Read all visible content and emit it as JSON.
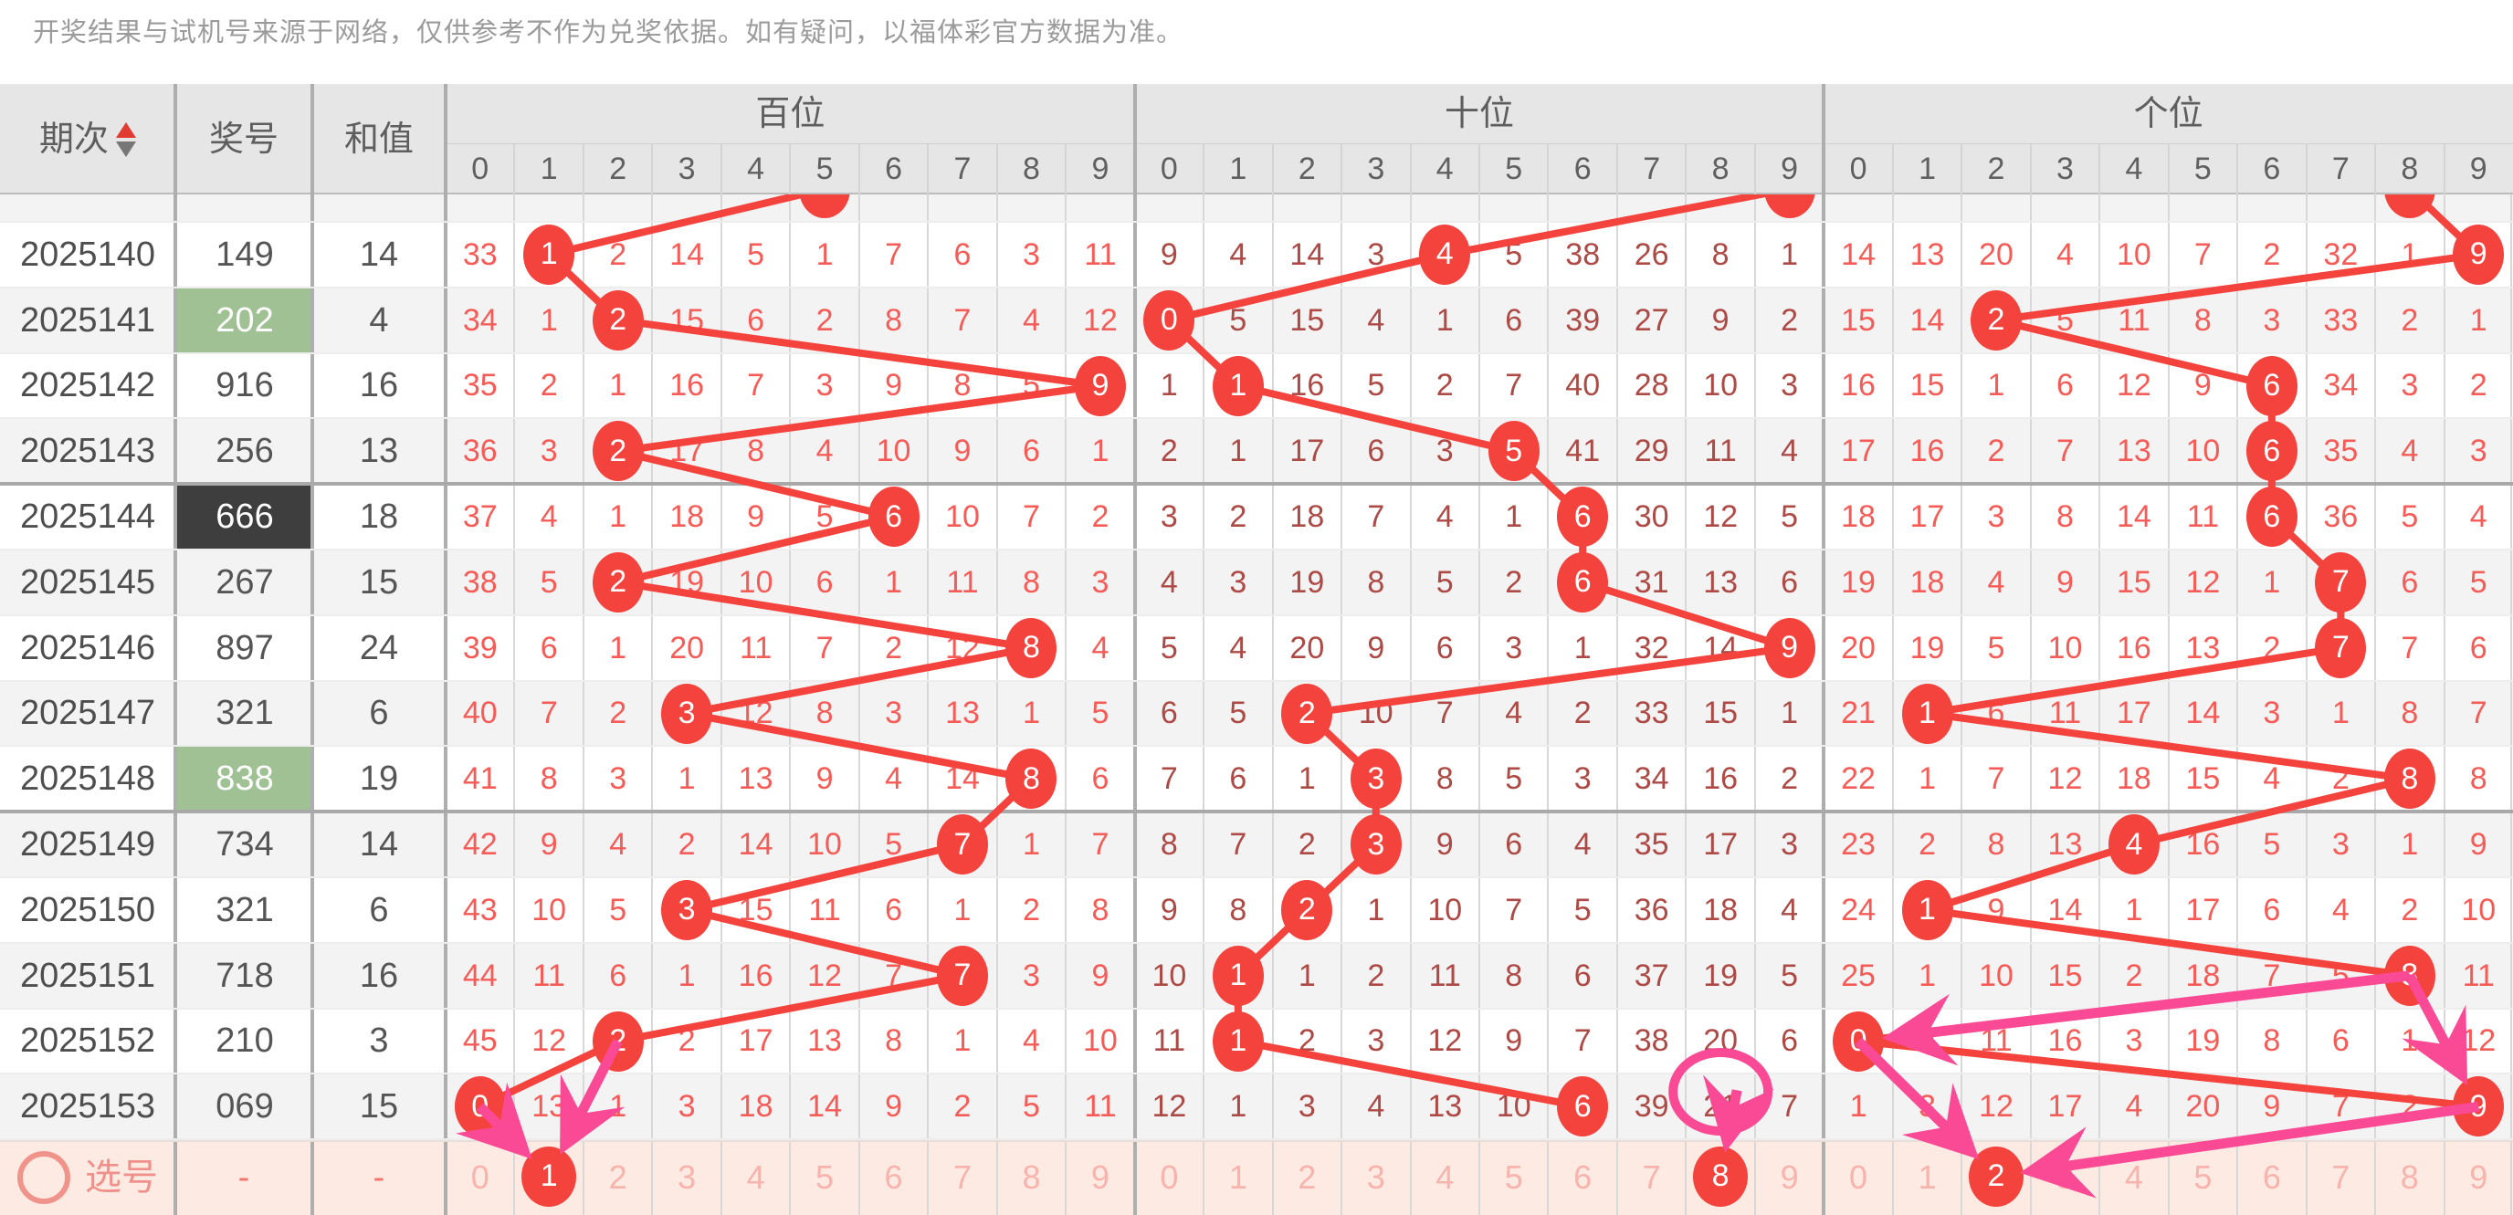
{
  "disclaimer": "开奖结果与试机号来源于网络，仅供参考不作为兑奖依据。如有疑问，以福体彩官方数据为准。",
  "header": {
    "col_period": "期次",
    "col_number": "奖号",
    "col_sum": "和值",
    "sections": [
      {
        "key": "bai",
        "label": "百位"
      },
      {
        "key": "shi",
        "label": "十位"
      },
      {
        "key": "ge",
        "label": "个位"
      }
    ],
    "digits": [
      "0",
      "1",
      "2",
      "3",
      "4",
      "5",
      "6",
      "7",
      "8",
      "9"
    ]
  },
  "colors": {
    "trend_red": "#f4423d",
    "bright_red_text": "#f65c57",
    "dark_red_text": "#ad4a45",
    "pink_annotation": "#fb4a95",
    "green_cell": "#9fc194",
    "dark_cell": "#3e3e3e",
    "select_row_bg": "#fdebe3",
    "select_faded_text": "#f8b3ac",
    "header_bg": "#e6e6e6"
  },
  "prev_row_hits": {
    "bai": 5,
    "shi": 9,
    "ge": 8
  },
  "rows": [
    {
      "period": "2025140",
      "number": "149",
      "sum": "14",
      "number_style": "normal",
      "bai": {
        "values": [
          33,
          1,
          2,
          14,
          5,
          1,
          7,
          6,
          3,
          11
        ],
        "hit": 1
      },
      "shi": {
        "values": [
          9,
          4,
          14,
          3,
          4,
          5,
          38,
          26,
          8,
          1
        ],
        "hit": 4
      },
      "ge": {
        "values": [
          14,
          13,
          20,
          4,
          10,
          7,
          2,
          32,
          1,
          9
        ],
        "hit": 9
      }
    },
    {
      "period": "2025141",
      "number": "202",
      "sum": "4",
      "number_style": "green",
      "bai": {
        "values": [
          34,
          1,
          2,
          15,
          6,
          2,
          8,
          7,
          4,
          12
        ],
        "hit": 2
      },
      "shi": {
        "values": [
          0,
          5,
          15,
          4,
          1,
          6,
          39,
          27,
          9,
          2
        ],
        "hit": 0
      },
      "ge": {
        "values": [
          15,
          14,
          2,
          5,
          11,
          8,
          3,
          33,
          2,
          1
        ],
        "hit": 2
      }
    },
    {
      "period": "2025142",
      "number": "916",
      "sum": "16",
      "number_style": "normal",
      "bai": {
        "values": [
          35,
          2,
          1,
          16,
          7,
          3,
          9,
          8,
          5,
          9
        ],
        "hit": 9
      },
      "shi": {
        "values": [
          1,
          1,
          16,
          5,
          2,
          7,
          40,
          28,
          10,
          3
        ],
        "hit": 1
      },
      "ge": {
        "values": [
          16,
          15,
          1,
          6,
          12,
          9,
          6,
          34,
          3,
          2
        ],
        "hit": 6
      }
    },
    {
      "period": "2025143",
      "number": "256",
      "sum": "13",
      "number_style": "normal",
      "bai": {
        "values": [
          36,
          3,
          2,
          17,
          8,
          4,
          10,
          9,
          6,
          1
        ],
        "hit": 2
      },
      "shi": {
        "values": [
          2,
          1,
          17,
          6,
          3,
          5,
          41,
          29,
          11,
          4
        ],
        "hit": 5
      },
      "ge": {
        "values": [
          17,
          16,
          2,
          7,
          13,
          10,
          6,
          35,
          4,
          3
        ],
        "hit": 6
      }
    },
    {
      "period": "2025144",
      "number": "666",
      "sum": "18",
      "number_style": "dark",
      "bai": {
        "values": [
          37,
          4,
          1,
          18,
          9,
          5,
          6,
          10,
          7,
          2
        ],
        "hit": 6
      },
      "shi": {
        "values": [
          3,
          2,
          18,
          7,
          4,
          1,
          6,
          30,
          12,
          5
        ],
        "hit": 6
      },
      "ge": {
        "values": [
          18,
          17,
          3,
          8,
          14,
          11,
          6,
          36,
          5,
          4
        ],
        "hit": 6
      }
    },
    {
      "period": "2025145",
      "number": "267",
      "sum": "15",
      "number_style": "normal",
      "bai": {
        "values": [
          38,
          5,
          2,
          19,
          10,
          6,
          1,
          11,
          8,
          3
        ],
        "hit": 2
      },
      "shi": {
        "values": [
          4,
          3,
          19,
          8,
          5,
          2,
          6,
          31,
          13,
          6
        ],
        "hit": 6
      },
      "ge": {
        "values": [
          19,
          18,
          4,
          9,
          15,
          12,
          1,
          7,
          6,
          5
        ],
        "hit": 7
      }
    },
    {
      "period": "2025146",
      "number": "897",
      "sum": "24",
      "number_style": "normal",
      "bai": {
        "values": [
          39,
          6,
          1,
          20,
          11,
          7,
          2,
          12,
          8,
          4
        ],
        "hit": 8
      },
      "shi": {
        "values": [
          5,
          4,
          20,
          9,
          6,
          3,
          1,
          32,
          14,
          9
        ],
        "hit": 9
      },
      "ge": {
        "values": [
          20,
          19,
          5,
          10,
          16,
          13,
          2,
          7,
          7,
          6
        ],
        "hit": 7
      }
    },
    {
      "period": "2025147",
      "number": "321",
      "sum": "6",
      "number_style": "normal",
      "bai": {
        "values": [
          40,
          7,
          2,
          3,
          12,
          8,
          3,
          13,
          1,
          5
        ],
        "hit": 3
      },
      "shi": {
        "values": [
          6,
          5,
          2,
          10,
          7,
          4,
          2,
          33,
          15,
          1
        ],
        "hit": 2
      },
      "ge": {
        "values": [
          21,
          1,
          6,
          11,
          17,
          14,
          3,
          1,
          8,
          7
        ],
        "hit": 1
      }
    },
    {
      "period": "2025148",
      "number": "838",
      "sum": "19",
      "number_style": "green",
      "bai": {
        "values": [
          41,
          8,
          3,
          1,
          13,
          9,
          4,
          14,
          8,
          6
        ],
        "hit": 8
      },
      "shi": {
        "values": [
          7,
          6,
          1,
          3,
          8,
          5,
          3,
          34,
          16,
          2
        ],
        "hit": 3
      },
      "ge": {
        "values": [
          22,
          1,
          7,
          12,
          18,
          15,
          4,
          2,
          8,
          8
        ],
        "hit": 8
      }
    },
    {
      "period": "2025149",
      "number": "734",
      "sum": "14",
      "number_style": "normal",
      "bai": {
        "values": [
          42,
          9,
          4,
          2,
          14,
          10,
          5,
          7,
          1,
          7
        ],
        "hit": 7
      },
      "shi": {
        "values": [
          8,
          7,
          2,
          3,
          9,
          6,
          4,
          35,
          17,
          3
        ],
        "hit": 3
      },
      "ge": {
        "values": [
          23,
          2,
          8,
          13,
          4,
          16,
          5,
          3,
          1,
          9
        ],
        "hit": 4
      }
    },
    {
      "period": "2025150",
      "number": "321",
      "sum": "6",
      "number_style": "normal",
      "bai": {
        "values": [
          43,
          10,
          5,
          3,
          15,
          11,
          6,
          1,
          2,
          8
        ],
        "hit": 3
      },
      "shi": {
        "values": [
          9,
          8,
          2,
          1,
          10,
          7,
          5,
          36,
          18,
          4
        ],
        "hit": 2
      },
      "ge": {
        "values": [
          24,
          1,
          9,
          14,
          1,
          17,
          6,
          4,
          2,
          10
        ],
        "hit": 1
      }
    },
    {
      "period": "2025151",
      "number": "718",
      "sum": "16",
      "number_style": "normal",
      "bai": {
        "values": [
          44,
          11,
          6,
          1,
          16,
          12,
          7,
          7,
          3,
          9
        ],
        "hit": 7
      },
      "shi": {
        "values": [
          10,
          1,
          1,
          2,
          11,
          8,
          6,
          37,
          19,
          5
        ],
        "hit": 1
      },
      "ge": {
        "values": [
          25,
          1,
          10,
          15,
          2,
          18,
          7,
          5,
          8,
          11
        ],
        "hit": 8
      }
    },
    {
      "period": "2025152",
      "number": "210",
      "sum": "3",
      "number_style": "normal",
      "bai": {
        "values": [
          45,
          12,
          2,
          2,
          17,
          13,
          8,
          1,
          4,
          10
        ],
        "hit": 2
      },
      "shi": {
        "values": [
          11,
          1,
          2,
          3,
          12,
          9,
          7,
          38,
          20,
          6
        ],
        "hit": 1
      },
      "ge": {
        "values": [
          0,
          2,
          11,
          16,
          3,
          19,
          8,
          6,
          1,
          12
        ],
        "hit": 0
      }
    },
    {
      "period": "2025153",
      "number": "069",
      "sum": "15",
      "number_style": "normal",
      "bai": {
        "values": [
          0,
          13,
          1,
          3,
          18,
          14,
          9,
          2,
          5,
          11
        ],
        "hit": 0
      },
      "shi": {
        "values": [
          12,
          1,
          3,
          4,
          13,
          10,
          6,
          39,
          21,
          7
        ],
        "hit": 6
      },
      "ge": {
        "values": [
          1,
          3,
          12,
          17,
          4,
          20,
          9,
          7,
          2,
          9
        ],
        "hit": 9
      }
    }
  ],
  "select_row": {
    "label": "选号",
    "number_placeholder": "-",
    "sum_placeholder": "-",
    "digits": [
      "0",
      "1",
      "2",
      "3",
      "4",
      "5",
      "6",
      "7",
      "8",
      "9"
    ],
    "selected": {
      "bai": 1,
      "shi": 8,
      "ge": 2
    }
  },
  "annotations": {
    "pink_circle": {
      "section": "shi",
      "period": "2025153",
      "col": 8,
      "circled_value": "21"
    },
    "arrows": [
      {
        "section": "bai",
        "from": {
          "type": "hit",
          "period": "2025152"
        },
        "to": {
          "type": "select"
        }
      },
      {
        "section": "bai",
        "from": {
          "type": "hit",
          "period": "2025153"
        },
        "to": {
          "type": "select"
        }
      },
      {
        "section": "shi",
        "from": {
          "type": "cell",
          "period": "2025153",
          "col": 8
        },
        "to": {
          "type": "select"
        }
      },
      {
        "section": "ge",
        "from": {
          "type": "hit",
          "period": "2025151"
        },
        "to": {
          "type": "hit",
          "period": "2025152"
        }
      },
      {
        "section": "ge",
        "from": {
          "type": "hit",
          "period": "2025151"
        },
        "to": {
          "type": "hit",
          "period": "2025153"
        }
      },
      {
        "section": "ge",
        "from": {
          "type": "hit",
          "period": "2025152"
        },
        "to": {
          "type": "select"
        }
      },
      {
        "section": "ge",
        "from": {
          "type": "hit",
          "period": "2025153"
        },
        "to": {
          "type": "select"
        }
      }
    ]
  }
}
